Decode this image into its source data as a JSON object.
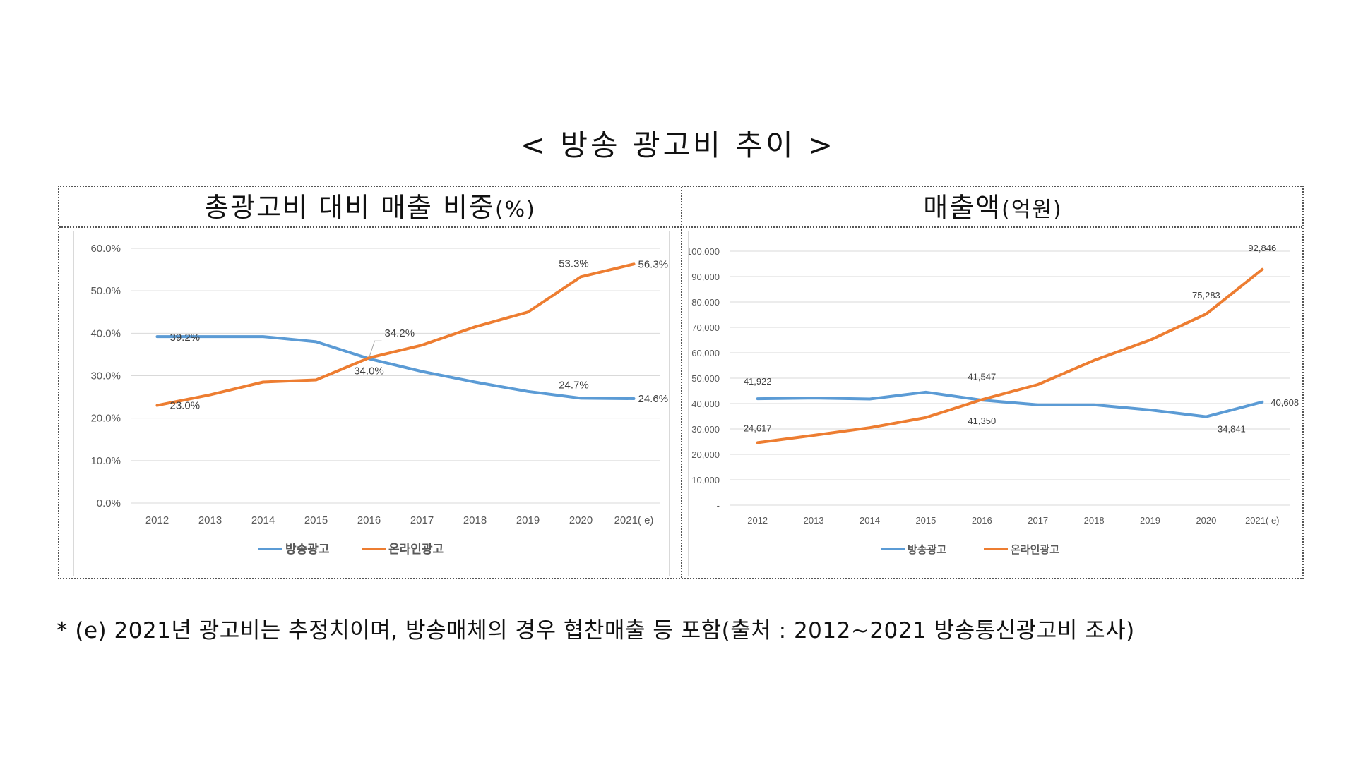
{
  "title": "< 방송 광고비 추이 >",
  "note": "* (e) 2021년 광고비는 추정치이며, 방송매체의 경우 협찬매출 등 포함(출처 : 2012~2021 방송통신광고비 조사)",
  "colors": {
    "broadcast": "#5b9bd5",
    "online": "#ed7d31",
    "grid": "#d9d9d9",
    "axis_text": "#595959"
  },
  "chart_data": [
    {
      "type": "line",
      "panel_title": "총광고비 대비 매출 비중",
      "panel_unit": "(%)",
      "categories": [
        "2012",
        "2013",
        "2014",
        "2015",
        "2016",
        "2017",
        "2018",
        "2019",
        "2020",
        "2021( e)"
      ],
      "yticks": [
        "0.0%",
        "10.0%",
        "20.0%",
        "30.0%",
        "40.0%",
        "50.0%",
        "60.0%"
      ],
      "ylim": [
        0,
        60
      ],
      "grid": true,
      "legend_position": "bottom",
      "series": [
        {
          "name": "방송광고",
          "color_key": "broadcast",
          "values": [
            39.2,
            39.2,
            39.2,
            38.0,
            34.0,
            31.0,
            28.5,
            26.3,
            24.7,
            24.6
          ]
        },
        {
          "name": "온라인광고",
          "color_key": "online",
          "values": [
            23.0,
            25.5,
            28.5,
            29.0,
            34.2,
            37.2,
            41.5,
            45.0,
            53.3,
            56.3
          ]
        }
      ],
      "data_labels": [
        {
          "series": 0,
          "index": 0,
          "text": "39.2%"
        },
        {
          "series": 0,
          "index": 4,
          "text": "34.0%"
        },
        {
          "series": 0,
          "index": 8,
          "text": "24.7%"
        },
        {
          "series": 0,
          "index": 9,
          "text": "24.6%"
        },
        {
          "series": 1,
          "index": 0,
          "text": "23.0%"
        },
        {
          "series": 1,
          "index": 4,
          "text": "34.2%"
        },
        {
          "series": 1,
          "index": 8,
          "text": "53.3%"
        },
        {
          "series": 1,
          "index": 9,
          "text": "56.3%"
        }
      ]
    },
    {
      "type": "line",
      "panel_title": "매출액",
      "panel_unit": "(억원)",
      "categories": [
        "2012",
        "2013",
        "2014",
        "2015",
        "2016",
        "2017",
        "2018",
        "2019",
        "2020",
        "2021( e)"
      ],
      "yticks": [
        "-",
        "10,000",
        "20,000",
        "30,000",
        "40,000",
        "50,000",
        "60,000",
        "70,000",
        "80,000",
        "90,000",
        "100,000"
      ],
      "ylim": [
        0,
        100000
      ],
      "grid": true,
      "legend_position": "bottom",
      "series": [
        {
          "name": "방송광고",
          "color_key": "broadcast",
          "values": [
            41922,
            42200,
            41800,
            44500,
            41350,
            39500,
            39500,
            37500,
            34841,
            40608
          ]
        },
        {
          "name": "온라인광고",
          "color_key": "online",
          "values": [
            24617,
            27500,
            30500,
            34500,
            41547,
            47500,
            57000,
            65000,
            75283,
            92846
          ]
        }
      ],
      "data_labels": [
        {
          "series": 0,
          "index": 0,
          "text": "41,922"
        },
        {
          "series": 0,
          "index": 4,
          "text": "41,350"
        },
        {
          "series": 0,
          "index": 8,
          "text": "34,841"
        },
        {
          "series": 0,
          "index": 9,
          "text": "40,608"
        },
        {
          "series": 1,
          "index": 0,
          "text": "24,617"
        },
        {
          "series": 1,
          "index": 4,
          "text": "41,547"
        },
        {
          "series": 1,
          "index": 8,
          "text": "75,283"
        },
        {
          "series": 1,
          "index": 9,
          "text": "92,846"
        }
      ]
    }
  ]
}
